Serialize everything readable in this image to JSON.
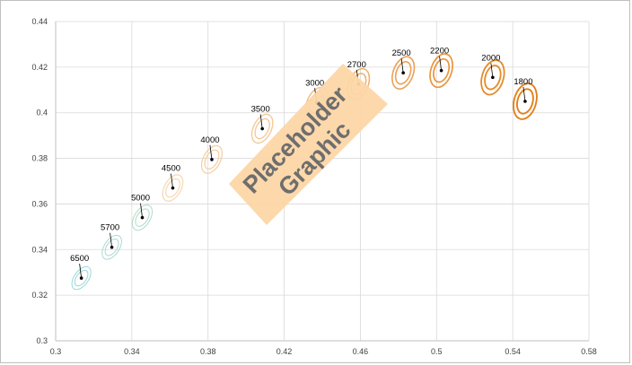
{
  "chart_data": {
    "type": "scatter",
    "title": "",
    "xlabel": "",
    "ylabel": "",
    "xlim": [
      0.3,
      0.58
    ],
    "ylim": [
      0.3,
      0.44
    ],
    "x_ticks": [
      "0.3",
      "0.34",
      "0.38",
      "0.42",
      "0.46",
      "0.5",
      "0.54",
      "0.58"
    ],
    "y_ticks": [
      "0.3",
      "0.32",
      "0.34",
      "0.36",
      "0.38",
      "0.4",
      "0.42",
      "0.44"
    ],
    "grid": "vertical and horizontal",
    "points": [
      {
        "label": "6500",
        "x": 0.3135,
        "y": 0.3275,
        "color": "#8fd3d6"
      },
      {
        "label": "5700",
        "x": 0.3295,
        "y": 0.341,
        "color": "#a9d9d2"
      },
      {
        "label": "5000",
        "x": 0.3455,
        "y": 0.354,
        "color": "#b6dccb"
      },
      {
        "label": "4500",
        "x": 0.3615,
        "y": 0.367,
        "color": "#f6d6b2"
      },
      {
        "label": "4000",
        "x": 0.382,
        "y": 0.3795,
        "color": "#f6cfa6"
      },
      {
        "label": "3500",
        "x": 0.4085,
        "y": 0.393,
        "color": "#f4c997"
      },
      {
        "label": "3000",
        "x": 0.437,
        "y": 0.4045,
        "color": "#f2bd85"
      },
      {
        "label": "2700",
        "x": 0.459,
        "y": 0.4125,
        "color": "#efb06e"
      },
      {
        "label": "2500",
        "x": 0.4825,
        "y": 0.4175,
        "color": "#eca25a"
      },
      {
        "label": "2200",
        "x": 0.5025,
        "y": 0.4185,
        "color": "#e8963f"
      },
      {
        "label": "2000",
        "x": 0.5295,
        "y": 0.4155,
        "color": "#e58b2c"
      },
      {
        "label": "1800",
        "x": 0.5465,
        "y": 0.405,
        "color": "#e2801c"
      }
    ],
    "overlay": {
      "text_line1": "Placeholder",
      "text_line2": "Graphic"
    }
  }
}
